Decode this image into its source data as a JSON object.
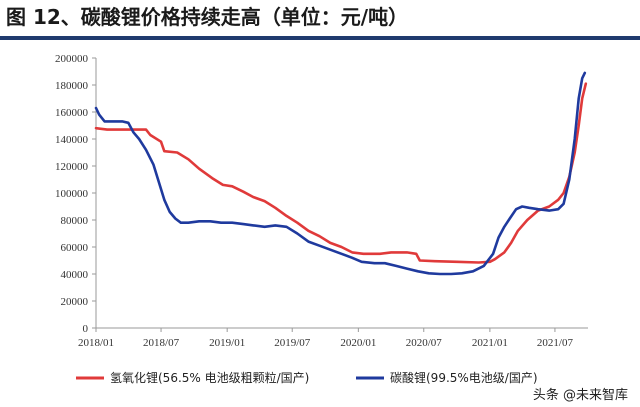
{
  "title": "图 12、碳酸锂价格持续走高（单位：元/吨）",
  "watermark": "头条 @未来智库",
  "colors": {
    "series_red": "#e03a3a",
    "series_blue": "#1f3a9e",
    "rule": "#1f3a6e",
    "axis": "#9a9a9a"
  },
  "chart_data": {
    "type": "line",
    "x_type": "date",
    "x_range": [
      "2018-01",
      "2021-10"
    ],
    "ylim": [
      0,
      200000
    ],
    "yticks": [
      0,
      20000,
      40000,
      60000,
      80000,
      100000,
      120000,
      140000,
      160000,
      180000,
      200000
    ],
    "xticks": [
      "2018/01",
      "2018/07",
      "2019/01",
      "2019/07",
      "2020/01",
      "2020/07",
      "2021/01",
      "2021/07"
    ],
    "grid": false,
    "legend_position": "bottom",
    "series": [
      {
        "name": "氢氧化锂(56.5% 电池级粗颗粒/国产)",
        "color": "#e03a3a",
        "points": [
          [
            "2018-01-01",
            148000
          ],
          [
            "2018-02-01",
            147000
          ],
          [
            "2018-04-01",
            147000
          ],
          [
            "2018-05-20",
            147000
          ],
          [
            "2018-06-01",
            143000
          ],
          [
            "2018-07-01",
            138000
          ],
          [
            "2018-07-10",
            131000
          ],
          [
            "2018-08-15",
            130000
          ],
          [
            "2018-09-15",
            125000
          ],
          [
            "2018-10-15",
            118000
          ],
          [
            "2018-11-20",
            111000
          ],
          [
            "2018-12-20",
            106000
          ],
          [
            "2019-01-15",
            105000
          ],
          [
            "2019-02-15",
            101000
          ],
          [
            "2019-03-15",
            97000
          ],
          [
            "2019-04-15",
            94000
          ],
          [
            "2019-05-15",
            89000
          ],
          [
            "2019-06-15",
            83000
          ],
          [
            "2019-07-15",
            78000
          ],
          [
            "2019-08-15",
            72000
          ],
          [
            "2019-09-15",
            68000
          ],
          [
            "2019-10-15",
            63000
          ],
          [
            "2019-11-15",
            60000
          ],
          [
            "2019-12-15",
            56000
          ],
          [
            "2020-01-15",
            55000
          ],
          [
            "2020-03-01",
            55000
          ],
          [
            "2020-04-01",
            56000
          ],
          [
            "2020-05-15",
            56000
          ],
          [
            "2020-06-10",
            55000
          ],
          [
            "2020-06-20",
            50000
          ],
          [
            "2020-08-01",
            49500
          ],
          [
            "2020-10-01",
            49000
          ],
          [
            "2020-12-01",
            48500
          ],
          [
            "2021-01-01",
            49000
          ],
          [
            "2021-01-15",
            51000
          ],
          [
            "2021-02-10",
            56000
          ],
          [
            "2021-03-01",
            63000
          ],
          [
            "2021-03-20",
            72000
          ],
          [
            "2021-04-15",
            80000
          ],
          [
            "2021-05-15",
            87000
          ],
          [
            "2021-06-15",
            90000
          ],
          [
            "2021-07-10",
            95000
          ],
          [
            "2021-07-25",
            100000
          ],
          [
            "2021-08-10",
            112000
          ],
          [
            "2021-08-25",
            130000
          ],
          [
            "2021-09-05",
            150000
          ],
          [
            "2021-09-15",
            170000
          ],
          [
            "2021-09-25",
            181000
          ]
        ]
      },
      {
        "name": "碳酸锂(99.5%电池级/国产)",
        "color": "#1f3a9e",
        "points": [
          [
            "2018-01-01",
            163000
          ],
          [
            "2018-01-10",
            158000
          ],
          [
            "2018-01-25",
            153000
          ],
          [
            "2018-02-15",
            153000
          ],
          [
            "2018-03-15",
            153000
          ],
          [
            "2018-04-01",
            152000
          ],
          [
            "2018-04-15",
            145000
          ],
          [
            "2018-05-01",
            140000
          ],
          [
            "2018-05-20",
            132000
          ],
          [
            "2018-06-10",
            121000
          ],
          [
            "2018-06-25",
            108000
          ],
          [
            "2018-07-10",
            95000
          ],
          [
            "2018-07-25",
            86000
          ],
          [
            "2018-08-10",
            81000
          ],
          [
            "2018-08-25",
            78000
          ],
          [
            "2018-09-15",
            78000
          ],
          [
            "2018-10-15",
            79000
          ],
          [
            "2018-11-15",
            79000
          ],
          [
            "2018-12-15",
            78000
          ],
          [
            "2019-01-15",
            78000
          ],
          [
            "2019-02-15",
            77000
          ],
          [
            "2019-03-15",
            76000
          ],
          [
            "2019-04-15",
            75000
          ],
          [
            "2019-05-15",
            76000
          ],
          [
            "2019-06-15",
            75000
          ],
          [
            "2019-07-15",
            70000
          ],
          [
            "2019-08-15",
            64000
          ],
          [
            "2019-09-15",
            61000
          ],
          [
            "2019-10-15",
            58000
          ],
          [
            "2019-11-15",
            55000
          ],
          [
            "2019-12-15",
            52000
          ],
          [
            "2020-01-10",
            49000
          ],
          [
            "2020-02-15",
            48000
          ],
          [
            "2020-03-15",
            48000
          ],
          [
            "2020-04-15",
            46000
          ],
          [
            "2020-05-15",
            44000
          ],
          [
            "2020-06-15",
            42000
          ],
          [
            "2020-07-15",
            40500
          ],
          [
            "2020-08-15",
            40000
          ],
          [
            "2020-09-15",
            40000
          ],
          [
            "2020-10-15",
            40500
          ],
          [
            "2020-11-15",
            42000
          ],
          [
            "2020-12-15",
            46000
          ],
          [
            "2021-01-10",
            55000
          ],
          [
            "2021-01-25",
            67000
          ],
          [
            "2021-02-10",
            75000
          ],
          [
            "2021-02-25",
            81000
          ],
          [
            "2021-03-15",
            88000
          ],
          [
            "2021-04-01",
            90000
          ],
          [
            "2021-04-20",
            89000
          ],
          [
            "2021-05-15",
            88000
          ],
          [
            "2021-06-15",
            87000
          ],
          [
            "2021-07-10",
            88000
          ],
          [
            "2021-07-25",
            92000
          ],
          [
            "2021-08-10",
            110000
          ],
          [
            "2021-08-25",
            140000
          ],
          [
            "2021-09-05",
            170000
          ],
          [
            "2021-09-15",
            185000
          ],
          [
            "2021-09-22",
            189000
          ]
        ]
      }
    ]
  }
}
